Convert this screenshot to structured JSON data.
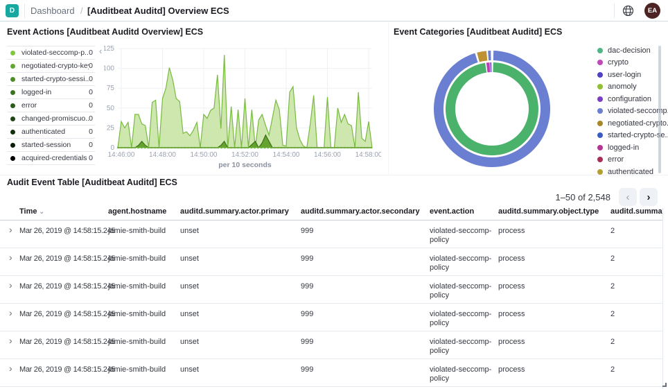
{
  "topbar": {
    "logo": "D",
    "breadcrumb": "Dashboard",
    "separator": "/",
    "title": "[Auditbeat Auditd] Overview ECS",
    "avatar": "EA",
    "brand_color": "#17a8a2",
    "avatar_color": "#4e2323"
  },
  "panels": {
    "event_actions": {
      "title": "Event Actions [Auditbeat Auditd Overview] ECS",
      "collapse_icon": "‹",
      "legend": [
        {
          "label": "violated-seccomp-p...",
          "value": "0",
          "color": "#7fc83b"
        },
        {
          "label": "negotiated-crypto-key",
          "value": "0",
          "color": "#61a832"
        },
        {
          "label": "started-crypto-sessi...",
          "value": "0",
          "color": "#4c8f29"
        },
        {
          "label": "logged-in",
          "value": "0",
          "color": "#3a7421"
        },
        {
          "label": "error",
          "value": "0",
          "color": "#2c5c1a"
        },
        {
          "label": "changed-promiscuo...",
          "value": "0",
          "color": "#204614"
        },
        {
          "label": "authenticated",
          "value": "0",
          "color": "#15300d"
        },
        {
          "label": "started-session",
          "value": "0",
          "color": "#0b1d07"
        },
        {
          "label": "acquired-credentials",
          "value": "0",
          "color": "#000000"
        }
      ]
    },
    "event_categories": {
      "title": "Event Categories [Auditbeat Auditd] ECS",
      "legend": [
        {
          "label": "dac-decision",
          "color": "#50b784"
        },
        {
          "label": "crypto",
          "color": "#bf49b9"
        },
        {
          "label": "user-login",
          "color": "#5142c1"
        },
        {
          "label": "anomoly",
          "color": "#8fc131"
        },
        {
          "label": "configuration",
          "color": "#7c3cc4"
        },
        {
          "label": "violated-seccomp...",
          "color": "#6b7fd2"
        },
        {
          "label": "negotiated-crypto...",
          "color": "#a98729"
        },
        {
          "label": "started-crypto-se...",
          "color": "#3a5dc5"
        },
        {
          "label": "logged-in",
          "color": "#b73397"
        },
        {
          "label": "error",
          "color": "#a92e57"
        },
        {
          "label": "authenticated",
          "color": "#b3a031"
        }
      ]
    },
    "audit_table": {
      "title": "Audit Event Table [Auditbeat Auditd] ECS",
      "pagination": {
        "range": "1–50 of 2,548",
        "prev": "‹",
        "next": "›"
      },
      "sort_icon": "⌄",
      "expand_icon": "›",
      "columns": [
        "Time",
        "agent.hostname",
        "auditd.summary.actor.primary",
        "auditd.summary.actor.secondary",
        "event.action",
        "auditd.summary.object.type",
        "auditd.summary"
      ],
      "rows": [
        {
          "time": "Mar 26, 2019 @ 14:58:15.245",
          "hostname": "jamie-smith-build",
          "primary": "unset",
          "secondary": "999",
          "action": "violated-seccomp-policy",
          "object_type": "process",
          "summary": "2"
        },
        {
          "time": "Mar 26, 2019 @ 14:58:15.245",
          "hostname": "jamie-smith-build",
          "primary": "unset",
          "secondary": "999",
          "action": "violated-seccomp-policy",
          "object_type": "process",
          "summary": "2"
        },
        {
          "time": "Mar 26, 2019 @ 14:58:15.245",
          "hostname": "jamie-smith-build",
          "primary": "unset",
          "secondary": "999",
          "action": "violated-seccomp-policy",
          "object_type": "process",
          "summary": "2"
        },
        {
          "time": "Mar 26, 2019 @ 14:58:15.245",
          "hostname": "jamie-smith-build",
          "primary": "unset",
          "secondary": "999",
          "action": "violated-seccomp-policy",
          "object_type": "process",
          "summary": "2"
        },
        {
          "time": "Mar 26, 2019 @ 14:58:15.245",
          "hostname": "jamie-smith-build",
          "primary": "unset",
          "secondary": "999",
          "action": "violated-seccomp-policy",
          "object_type": "process",
          "summary": "2"
        },
        {
          "time": "Mar 26, 2019 @ 14:58:15.245",
          "hostname": "jamie-smith-build",
          "primary": "unset",
          "secondary": "999",
          "action": "violated-seccomp-policy",
          "object_type": "process",
          "summary": "2"
        }
      ]
    }
  },
  "chart_data": [
    {
      "type": "area",
      "title": "Event Actions [Auditbeat Auditd Overview] ECS",
      "xlabel": "per 10 seconds",
      "ylabel": "",
      "ylim": [
        0,
        125
      ],
      "yticks": [
        0,
        25,
        50,
        75,
        100,
        125
      ],
      "x_start": "14:45:50",
      "x_interval_seconds": 10,
      "xtick_labels": [
        "14:46:00",
        "14:48:00",
        "14:50:00",
        "14:52:00",
        "14:54:00",
        "14:56:00",
        "14:58:00"
      ],
      "xtick_indices": [
        1,
        13,
        25,
        37,
        49,
        61,
        73
      ],
      "grid": true,
      "series": [
        {
          "name": "violated-seccomp-policy",
          "line_color": "#78ba3e",
          "fill_color": "#c8e4a6",
          "values": [
            0,
            33,
            25,
            32,
            0,
            42,
            42,
            30,
            28,
            0,
            57,
            60,
            0,
            62,
            75,
            101,
            85,
            62,
            58,
            18,
            20,
            15,
            22,
            32,
            0,
            42,
            37,
            47,
            50,
            92,
            24,
            117,
            0,
            52,
            0,
            48,
            0,
            62,
            0,
            48,
            0,
            35,
            42,
            28,
            16,
            38,
            60,
            48,
            3,
            2,
            70,
            77,
            25,
            10,
            2,
            0,
            30,
            66,
            0,
            0,
            0,
            64,
            0,
            0,
            50,
            32,
            42,
            30,
            28,
            0,
            70,
            12,
            8,
            33,
            0
          ]
        },
        {
          "name": "changed-promiscuous-mode",
          "line_color": "#3c6d15",
          "fill_color": "#5a9b24",
          "values": [
            0,
            0,
            0,
            0,
            0,
            0,
            3,
            8,
            3,
            0,
            0,
            0,
            0,
            0,
            0,
            0,
            0,
            0,
            0,
            0,
            0,
            0,
            0,
            0,
            0,
            0,
            0,
            0,
            0,
            0,
            3,
            8,
            0,
            0,
            0,
            0,
            0,
            0,
            0,
            4,
            8,
            0,
            6,
            16,
            8,
            0,
            0,
            0,
            0,
            0,
            0,
            0,
            0,
            0,
            0,
            0,
            0,
            0,
            0,
            0,
            0,
            0,
            0,
            0,
            0,
            0,
            0,
            0,
            0,
            0,
            0,
            0,
            0,
            0,
            0
          ]
        }
      ]
    },
    {
      "type": "donut",
      "title": "Event Categories [Auditbeat Auditd] ECS",
      "legend_position": "right",
      "rings": [
        {
          "position": "inner",
          "segments": [
            {
              "label": "dac-decision",
              "color": "#4bb26c",
              "start_deg": 1.5,
              "end_deg": 351.5
            },
            {
              "label": "crypto",
              "color": "#bb3fb4",
              "start_deg": 353,
              "end_deg": 357
            },
            {
              "label": "user-login",
              "color": "#4f41bd",
              "start_deg": 357.8,
              "end_deg": 359.2
            }
          ]
        },
        {
          "position": "outer",
          "segments": [
            {
              "label": "violated-seccomp-policy",
              "color": "#6b7fd2",
              "start_deg": 1.5,
              "end_deg": 343
            },
            {
              "label": "negotiated-crypto-key",
              "color": "#bd9232",
              "start_deg": 345,
              "end_deg": 354.5
            },
            {
              "label": "violated-seccomp-policy",
              "color": "#6b7fd2",
              "start_deg": 356,
              "end_deg": 358.8
            }
          ]
        }
      ]
    }
  ]
}
